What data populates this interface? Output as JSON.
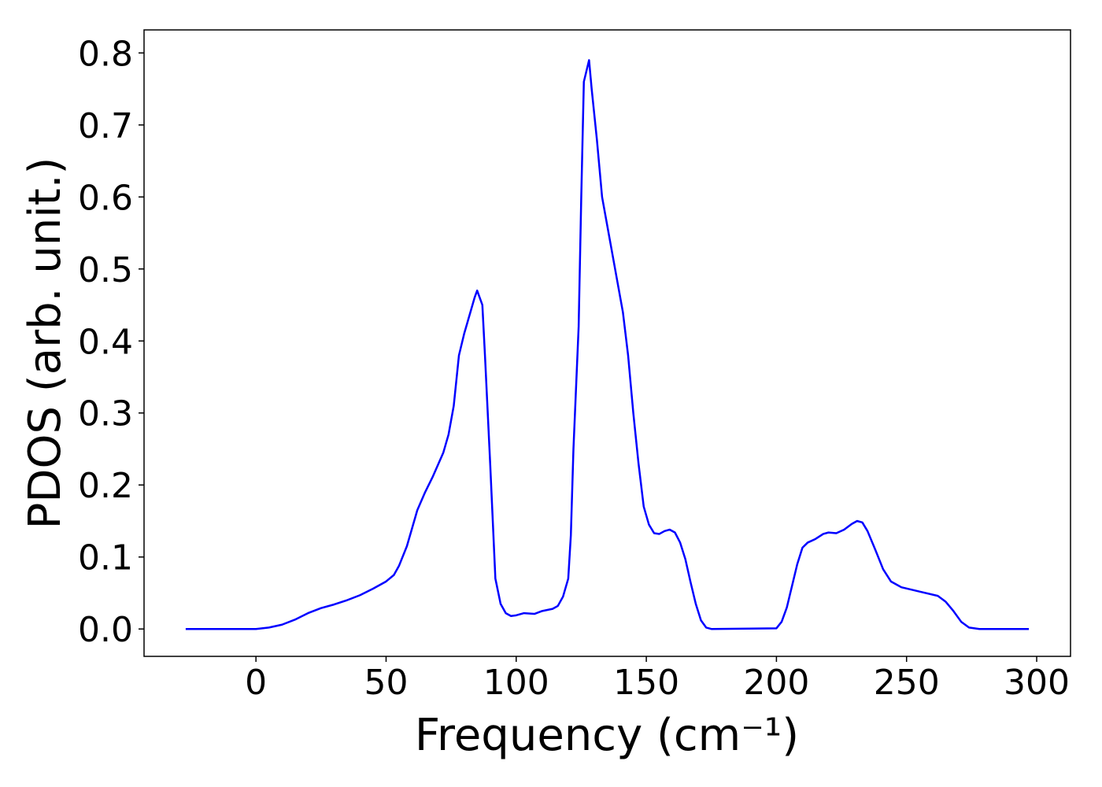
{
  "chart_data": {
    "type": "line",
    "xlabel": "Frequency (cm⁻¹)",
    "ylabel": "PDOS (arb. unit.)",
    "x": [
      -27,
      0,
      5,
      10,
      15,
      20,
      25,
      30,
      35,
      40,
      45,
      50,
      53,
      55,
      58,
      60,
      62,
      65,
      68,
      72,
      74,
      76,
      78,
      80,
      82,
      84,
      85,
      87,
      88,
      90,
      91,
      92,
      94,
      96,
      98,
      100,
      103,
      107,
      110,
      114,
      116,
      118,
      120,
      121,
      122,
      124,
      125,
      126,
      128,
      129,
      131,
      133,
      135,
      137,
      139,
      141,
      143,
      145,
      147,
      149,
      151,
      153,
      155,
      157,
      159,
      161,
      163,
      165,
      167,
      169,
      171,
      173,
      175,
      200,
      202,
      204,
      206,
      208,
      210,
      212,
      215,
      218,
      220,
      223,
      226,
      229,
      231,
      233,
      235,
      238,
      241,
      244,
      248,
      255,
      262,
      265,
      268,
      271,
      274,
      278,
      297
    ],
    "series": [
      {
        "name": "PDOS",
        "color": "#0000ff",
        "values": [
          0,
          0,
          0.002,
          0.006,
          0.013,
          0.022,
          0.029,
          0.034,
          0.04,
          0.047,
          0.056,
          0.066,
          0.075,
          0.088,
          0.115,
          0.14,
          0.165,
          0.19,
          0.212,
          0.245,
          0.27,
          0.31,
          0.38,
          0.41,
          0.435,
          0.46,
          0.47,
          0.45,
          0.38,
          0.23,
          0.15,
          0.07,
          0.035,
          0.022,
          0.018,
          0.019,
          0.022,
          0.021,
          0.025,
          0.028,
          0.032,
          0.045,
          0.07,
          0.13,
          0.25,
          0.42,
          0.6,
          0.76,
          0.79,
          0.75,
          0.68,
          0.6,
          0.56,
          0.52,
          0.48,
          0.44,
          0.38,
          0.3,
          0.23,
          0.17,
          0.145,
          0.133,
          0.132,
          0.136,
          0.138,
          0.134,
          0.12,
          0.097,
          0.065,
          0.035,
          0.012,
          0.002,
          0,
          0.001,
          0.01,
          0.03,
          0.06,
          0.09,
          0.113,
          0.12,
          0.125,
          0.132,
          0.134,
          0.133,
          0.138,
          0.146,
          0.15,
          0.148,
          0.136,
          0.11,
          0.083,
          0.066,
          0.058,
          0.052,
          0.046,
          0.038,
          0.025,
          0.01,
          0.002,
          0,
          0
        ]
      }
    ],
    "xlim": [
      -43,
      313
    ],
    "ylim": [
      -0.038,
      0.832
    ],
    "xticks": [
      0,
      50,
      100,
      150,
      200,
      250,
      300
    ],
    "yticks": [
      {
        "value": 0,
        "label": "0.0"
      },
      0.1,
      0.2,
      0.3,
      0.4,
      0.5,
      0.6,
      0.7,
      0.8
    ]
  }
}
